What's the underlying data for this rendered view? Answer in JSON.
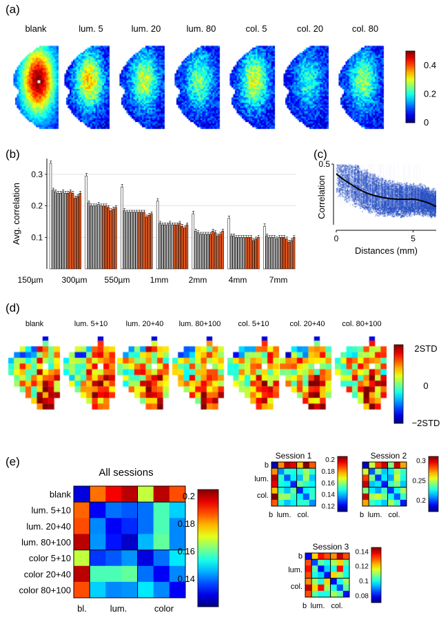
{
  "panel_a": {
    "letter": "(a)",
    "conditions": [
      "blank",
      "lum. 5",
      "lum. 20",
      "lum. 80",
      "col. 5",
      "col. 20",
      "col. 80"
    ],
    "colorbar_ticks": [
      "0.4",
      "0.2",
      "0"
    ],
    "colorbar_values": [
      0.4,
      0.2,
      0
    ],
    "colorbar_range": [
      0,
      0.5
    ]
  },
  "panel_b": {
    "letter": "(b)"
  },
  "panel_c": {
    "letter": "(c)"
  },
  "panel_d": {
    "letter": "(d)",
    "conditions": [
      "blank",
      "lum. 5+10",
      "lum. 20+40",
      "lum. 80+100",
      "col. 5+10",
      "col. 20+40",
      "col. 80+100"
    ],
    "colorbar_ticks": [
      "2STD",
      "0",
      "−2STD"
    ]
  },
  "panel_e": {
    "letter": "(e)",
    "main": {
      "title": "All sessions",
      "row_labels": [
        "blank",
        "lum. 5+10",
        "lum. 20+40",
        "lum. 80+100",
        "color 5+10",
        "color 20+40",
        "color 80+100"
      ],
      "col_labels": [
        "bl.",
        "lum.",
        "color"
      ],
      "colorbar_ticks": [
        "0.2",
        "0.18",
        "0.16",
        "0.14"
      ],
      "colorbar_values": [
        0.2,
        0.18,
        0.16,
        0.14
      ],
      "colorbar_range": [
        0.12,
        0.205
      ],
      "matrix": [
        [
          0.128,
          0.185,
          0.195,
          0.2,
          0.168,
          0.2,
          0.188
        ],
        [
          0.186,
          0.13,
          0.14,
          0.138,
          0.14,
          0.158,
          0.148
        ],
        [
          0.188,
          0.142,
          0.13,
          0.134,
          0.14,
          0.158,
          0.142
        ],
        [
          0.2,
          0.143,
          0.132,
          0.126,
          0.146,
          0.16,
          0.142
        ],
        [
          0.168,
          0.135,
          0.138,
          0.143,
          0.128,
          0.14,
          0.15
        ],
        [
          0.2,
          0.158,
          0.158,
          0.16,
          0.14,
          0.13,
          0.142
        ],
        [
          0.188,
          0.148,
          0.142,
          0.143,
          0.15,
          0.142,
          0.13
        ]
      ]
    },
    "sessions": [
      {
        "title": "Session 1",
        "row_labels": [
          "b",
          "lum.",
          "col."
        ],
        "col_labels": [
          "b",
          "lum.",
          "col."
        ],
        "colorbar_ticks": [
          "0.2",
          "0.18",
          "0.16",
          "0.14",
          "0.12"
        ],
        "colorbar_values": [
          0.2,
          0.18,
          0.16,
          0.14,
          0.12
        ],
        "colorbar_range": [
          0.11,
          0.205
        ],
        "matrix": [
          [
            0.115,
            0.18,
            0.2,
            0.195,
            0.175,
            0.205,
            0.185
          ],
          [
            0.18,
            0.135,
            0.15,
            0.148,
            0.15,
            0.16,
            0.15
          ],
          [
            0.2,
            0.15,
            0.13,
            0.145,
            0.14,
            0.16,
            0.14
          ],
          [
            0.195,
            0.148,
            0.145,
            0.125,
            0.155,
            0.15,
            0.145
          ],
          [
            0.175,
            0.15,
            0.14,
            0.155,
            0.125,
            0.145,
            0.15
          ],
          [
            0.205,
            0.16,
            0.16,
            0.15,
            0.145,
            0.13,
            0.15
          ],
          [
            0.185,
            0.15,
            0.14,
            0.145,
            0.15,
            0.15,
            0.135
          ]
        ]
      },
      {
        "title": "Session 2",
        "row_labels": [],
        "col_labels": [
          "b",
          "lum.",
          "col."
        ],
        "colorbar_ticks": [
          "0.3",
          "0.25",
          "0.2"
        ],
        "colorbar_values": [
          0.3,
          0.25,
          0.2
        ],
        "colorbar_range": [
          0.17,
          0.31
        ],
        "matrix": [
          [
            0.18,
            0.25,
            0.285,
            0.3,
            0.24,
            0.3,
            0.27
          ],
          [
            0.25,
            0.2,
            0.24,
            0.215,
            0.22,
            0.245,
            0.23
          ],
          [
            0.285,
            0.24,
            0.195,
            0.22,
            0.21,
            0.25,
            0.225
          ],
          [
            0.3,
            0.215,
            0.22,
            0.19,
            0.23,
            0.24,
            0.215
          ],
          [
            0.24,
            0.22,
            0.21,
            0.23,
            0.195,
            0.225,
            0.245
          ],
          [
            0.3,
            0.245,
            0.25,
            0.24,
            0.225,
            0.2,
            0.23
          ],
          [
            0.27,
            0.23,
            0.225,
            0.215,
            0.245,
            0.23,
            0.19
          ]
        ]
      },
      {
        "title": "Session 3",
        "row_labels": [
          "b",
          "lum.",
          "col."
        ],
        "col_labels": [
          "b",
          "lum.",
          "col."
        ],
        "colorbar_ticks": [
          "0.14",
          "0.12",
          "0.1",
          "0.08"
        ],
        "colorbar_values": [
          0.14,
          0.12,
          0.1,
          0.08
        ],
        "colorbar_range": [
          0.07,
          0.145
        ],
        "matrix": [
          [
            0.08,
            0.12,
            0.135,
            0.13,
            0.125,
            0.14,
            0.13
          ],
          [
            0.13,
            0.085,
            0.105,
            0.1,
            0.11,
            0.12,
            0.105
          ],
          [
            0.135,
            0.105,
            0.08,
            0.095,
            0.1,
            0.135,
            0.1
          ],
          [
            0.13,
            0.1,
            0.095,
            0.08,
            0.12,
            0.11,
            0.1
          ],
          [
            0.125,
            0.11,
            0.1,
            0.12,
            0.08,
            0.1,
            0.11
          ],
          [
            0.14,
            0.12,
            0.135,
            0.11,
            0.1,
            0.085,
            0.105
          ],
          [
            0.13,
            0.105,
            0.1,
            0.1,
            0.11,
            0.105,
            0.08
          ]
        ]
      }
    ]
  },
  "chart_data": [
    {
      "type": "bar",
      "panel": "(b)",
      "ylabel": "Avg. correlation",
      "xlabel": "",
      "ylim": [
        0,
        0.35
      ],
      "yticks": [
        "0.3",
        "0.2",
        "0.1"
      ],
      "ytick_values": [
        0.3,
        0.2,
        0.1
      ],
      "grid": true,
      "group_ticks": [
        "150µm",
        "300µm",
        "550µm",
        "1mm",
        "2mm",
        "4mm",
        "7mm"
      ],
      "groups": [
        {
          "blank": 0.335,
          "lum": [
            0.25,
            0.245,
            0.24,
            0.24,
            0.245,
            0.24
          ],
          "col": [
            0.24,
            0.245,
            0.24,
            0.225,
            0.23,
            0.24
          ]
        },
        {
          "blank": 0.295,
          "lum": [
            0.21,
            0.2,
            0.2,
            0.2,
            0.205,
            0.2
          ],
          "col": [
            0.2,
            0.2,
            0.195,
            0.185,
            0.19,
            0.195
          ]
        },
        {
          "blank": 0.26,
          "lum": [
            0.185,
            0.18,
            0.18,
            0.18,
            0.18,
            0.18
          ],
          "col": [
            0.18,
            0.18,
            0.18,
            0.165,
            0.17,
            0.175
          ]
        },
        {
          "blank": 0.215,
          "lum": [
            0.145,
            0.14,
            0.14,
            0.14,
            0.145,
            0.14
          ],
          "col": [
            0.14,
            0.14,
            0.145,
            0.135,
            0.13,
            0.14
          ]
        },
        {
          "blank": 0.175,
          "lum": [
            0.12,
            0.115,
            0.11,
            0.11,
            0.11,
            0.11
          ],
          "col": [
            0.11,
            0.12,
            0.115,
            0.105,
            0.11,
            0.12
          ]
        },
        {
          "blank": 0.16,
          "lum": [
            0.105,
            0.105,
            0.1,
            0.1,
            0.1,
            0.1
          ],
          "col": [
            0.1,
            0.1,
            0.1,
            0.09,
            0.095,
            0.1
          ]
        },
        {
          "blank": 0.135,
          "lum": [
            0.105,
            0.1,
            0.1,
            0.1,
            0.095,
            0.1
          ],
          "col": [
            0.1,
            0.1,
            0.095,
            0.085,
            0.09,
            0.1
          ]
        }
      ],
      "colors": {
        "blank": "#ffffff",
        "lum": "#a9a9a9",
        "col": "#e2571e"
      }
    },
    {
      "type": "scatter",
      "panel": "(c)",
      "xlabel": "Distances (mm)",
      "ylabel": "Correlation",
      "xlim": [
        0,
        6.5
      ],
      "ylim": [
        0,
        0.5
      ],
      "xticks": [
        "0",
        "5"
      ],
      "xtick_values": [
        0,
        5
      ],
      "yticks": [
        "0.5"
      ],
      "ytick_values": [
        0.5
      ],
      "fit_curve": {
        "x": [
          0,
          0.5,
          1,
          1.5,
          2,
          2.5,
          3,
          3.5,
          4,
          4.5,
          5,
          5.5,
          6,
          6.5
        ],
        "y": [
          0.42,
          0.37,
          0.33,
          0.29,
          0.26,
          0.24,
          0.225,
          0.215,
          0.21,
          0.21,
          0.212,
          0.2,
          0.18,
          0.15
        ]
      },
      "point_color": "#2b52c4",
      "curve_color": "#000000"
    }
  ]
}
